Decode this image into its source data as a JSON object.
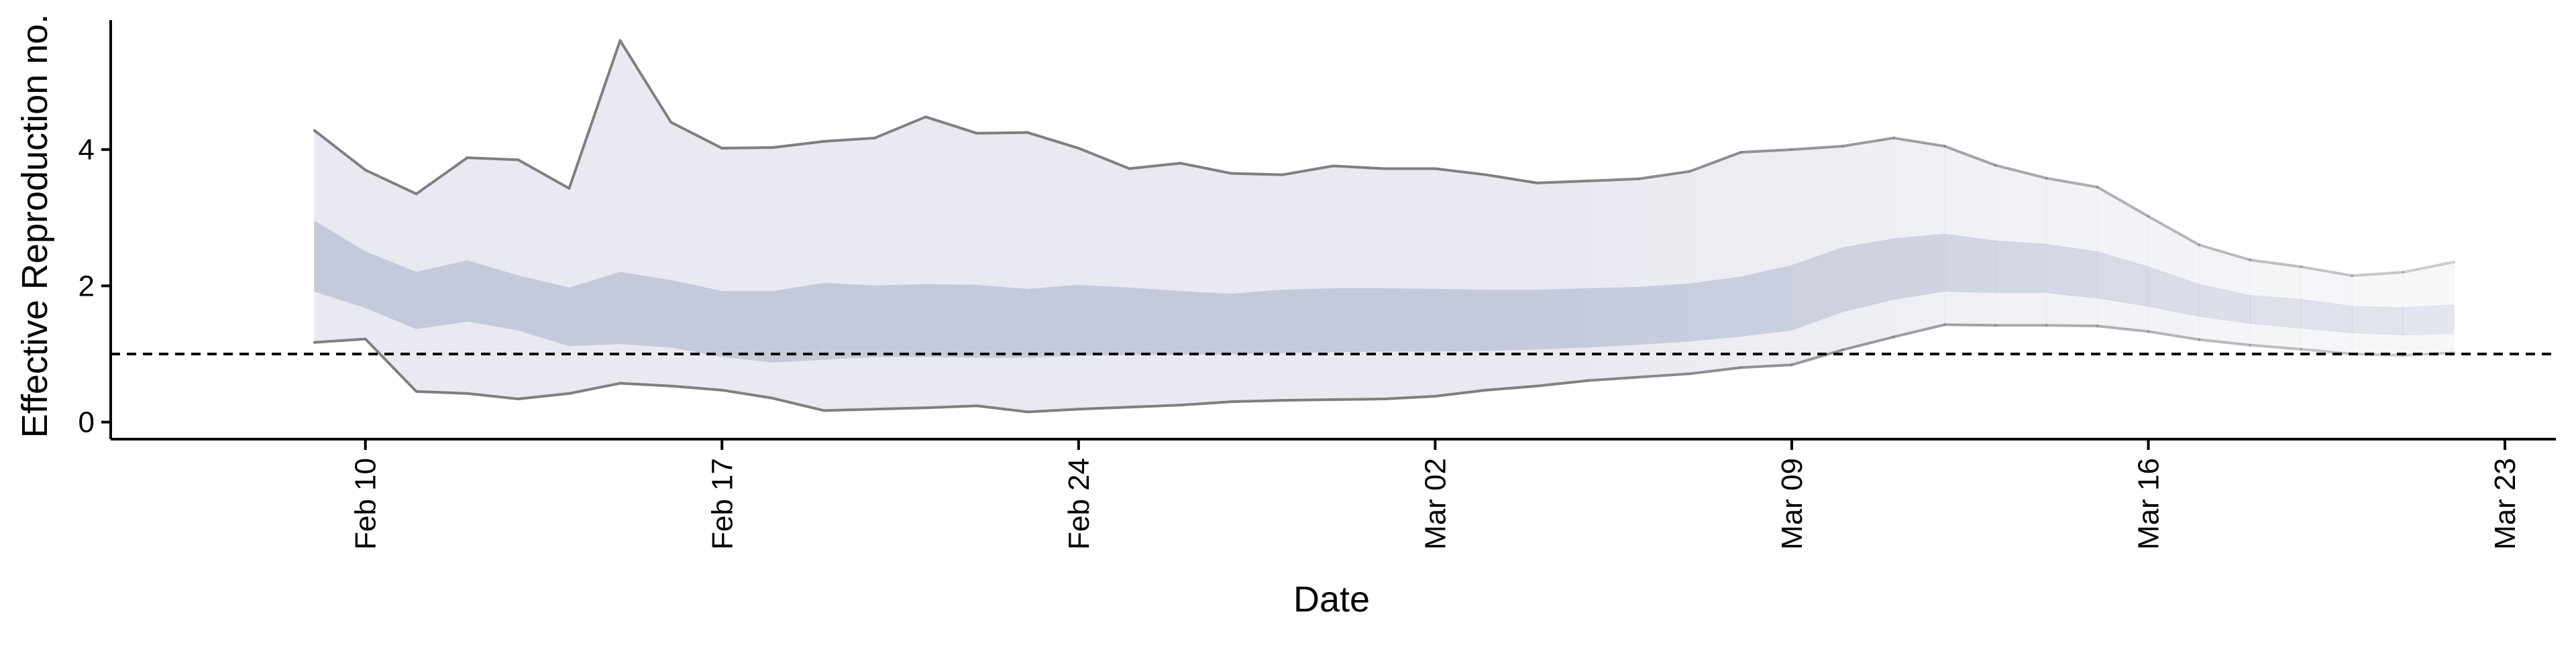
{
  "chart_data": {
    "type": "line",
    "title": "",
    "xlabel": "Date",
    "ylabel": "Effective Reproduction no.",
    "x_axis": {
      "type": "date",
      "range": [
        "2020-02-05",
        "2020-03-24"
      ],
      "ticks": [
        {
          "date": "2020-02-10",
          "label": "Feb 10"
        },
        {
          "date": "2020-02-17",
          "label": "Feb 17"
        },
        {
          "date": "2020-02-24",
          "label": "Feb 24"
        },
        {
          "date": "2020-03-02",
          "label": "Mar 02"
        },
        {
          "date": "2020-03-09",
          "label": "Mar 09"
        },
        {
          "date": "2020-03-16",
          "label": "Mar 16"
        },
        {
          "date": "2020-03-23",
          "label": "Mar 23"
        }
      ]
    },
    "y_axis": {
      "range": [
        -0.25,
        5.9
      ],
      "ticks": [
        {
          "value": 0,
          "label": "0"
        },
        {
          "value": 2,
          "label": "2"
        },
        {
          "value": 4,
          "label": "4"
        }
      ]
    },
    "reference_line": {
      "y": 1,
      "style": "dashed"
    },
    "colors": {
      "outer_band": "#e9eaf1",
      "inner_band": "#c4c9db",
      "bound_line": "#7f7f7f",
      "reference_line": "#000000"
    },
    "x": [
      "2020-02-09",
      "2020-02-10",
      "2020-02-11",
      "2020-02-12",
      "2020-02-13",
      "2020-02-14",
      "2020-02-15",
      "2020-02-16",
      "2020-02-17",
      "2020-02-18",
      "2020-02-19",
      "2020-02-20",
      "2020-02-21",
      "2020-02-22",
      "2020-02-23",
      "2020-02-24",
      "2020-02-25",
      "2020-02-26",
      "2020-02-27",
      "2020-02-28",
      "2020-02-29",
      "2020-03-01",
      "2020-03-02",
      "2020-03-03",
      "2020-03-04",
      "2020-03-05",
      "2020-03-06",
      "2020-03-07",
      "2020-03-08",
      "2020-03-09",
      "2020-03-10",
      "2020-03-11",
      "2020-03-12",
      "2020-03-13",
      "2020-03-14",
      "2020-03-15",
      "2020-03-16",
      "2020-03-17",
      "2020-03-18",
      "2020-03-19",
      "2020-03-20",
      "2020-03-21",
      "2020-03-22"
    ],
    "upper_outer": [
      4.28,
      3.7,
      3.35,
      3.88,
      3.85,
      3.43,
      5.6,
      4.4,
      4.02,
      4.03,
      4.12,
      4.17,
      4.48,
      4.24,
      4.25,
      4.02,
      3.72,
      3.8,
      3.65,
      3.63,
      3.76,
      3.72,
      3.72,
      3.63,
      3.51,
      3.54,
      3.57,
      3.68,
      3.96,
      4.0,
      4.05,
      4.17,
      4.05,
      3.77,
      3.58,
      3.45,
      3.02,
      2.6,
      2.38,
      2.28,
      2.15,
      2.2,
      2.35
    ],
    "upper_inner": [
      2.95,
      2.5,
      2.2,
      2.37,
      2.15,
      1.97,
      2.2,
      2.08,
      1.92,
      1.92,
      2.04,
      2.0,
      2.02,
      2.01,
      1.95,
      2.01,
      1.97,
      1.92,
      1.88,
      1.94,
      1.96,
      1.96,
      1.95,
      1.94,
      1.94,
      1.96,
      1.98,
      2.03,
      2.13,
      2.3,
      2.56,
      2.69,
      2.76,
      2.66,
      2.61,
      2.5,
      2.28,
      2.02,
      1.86,
      1.8,
      1.7,
      1.68,
      1.72
    ],
    "lower_inner": [
      1.92,
      1.68,
      1.37,
      1.48,
      1.35,
      1.12,
      1.15,
      1.1,
      0.96,
      0.88,
      0.92,
      0.96,
      0.96,
      0.95,
      0.95,
      0.98,
      0.99,
      1.0,
      1.0,
      1.02,
      1.03,
      1.04,
      1.04,
      1.05,
      1.07,
      1.1,
      1.14,
      1.19,
      1.26,
      1.35,
      1.62,
      1.8,
      1.92,
      1.9,
      1.9,
      1.82,
      1.7,
      1.55,
      1.45,
      1.38,
      1.31,
      1.28,
      1.3
    ],
    "lower_outer": [
      1.17,
      1.22,
      0.45,
      0.42,
      0.34,
      0.42,
      0.57,
      0.53,
      0.47,
      0.35,
      0.17,
      0.19,
      0.21,
      0.24,
      0.15,
      0.19,
      0.22,
      0.25,
      0.3,
      0.32,
      0.33,
      0.34,
      0.38,
      0.47,
      0.53,
      0.61,
      0.66,
      0.71,
      0.8,
      0.84,
      1.06,
      1.25,
      1.43,
      1.42,
      1.42,
      1.41,
      1.33,
      1.21,
      1.13,
      1.07,
      1.0,
      0.98,
      1.02
    ]
  }
}
